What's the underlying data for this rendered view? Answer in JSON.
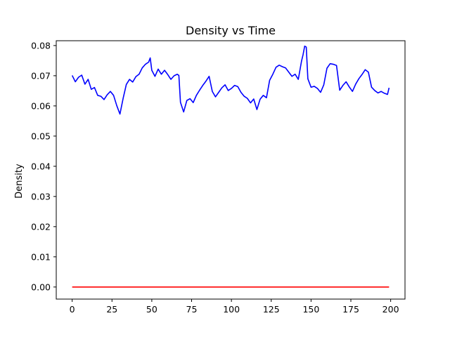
{
  "chart_data": {
    "type": "line",
    "title": "Density vs Time",
    "xlabel": "",
    "ylabel": "Density",
    "xlim": [
      -10,
      209
    ],
    "ylim": [
      -0.004,
      0.0816
    ],
    "x_ticks": [
      0,
      25,
      50,
      75,
      100,
      125,
      150,
      175,
      200
    ],
    "y_ticks": [
      0.0,
      0.01,
      0.02,
      0.03,
      0.04,
      0.05,
      0.06,
      0.07,
      0.08
    ],
    "y_tick_decimals": 2,
    "grid": false,
    "legend": "none",
    "series": [
      {
        "color": "#0000ff",
        "x": [
          0,
          2,
          4,
          6,
          8,
          10,
          12,
          14,
          16,
          18,
          20,
          22,
          24,
          26,
          28,
          30,
          32,
          34,
          36,
          38,
          40,
          42,
          44,
          46,
          48,
          49,
          50,
          52,
          54,
          56,
          58,
          60,
          62,
          64,
          66,
          67,
          68,
          70,
          72,
          74,
          76,
          78,
          80,
          82,
          84,
          86,
          88,
          90,
          92,
          94,
          96,
          98,
          100,
          102,
          104,
          106,
          108,
          110,
          112,
          114,
          116,
          118,
          120,
          122,
          124,
          126,
          128,
          130,
          132,
          134,
          136,
          138,
          140,
          142,
          144,
          145,
          146,
          147,
          148,
          150,
          152,
          154,
          156,
          158,
          160,
          162,
          164,
          166,
          168,
          170,
          172,
          174,
          176,
          178,
          180,
          182,
          184,
          186,
          188,
          190,
          192,
          194,
          196,
          198,
          199
        ],
        "values": [
          0.0701,
          0.068,
          0.0695,
          0.0702,
          0.0672,
          0.0688,
          0.0655,
          0.0661,
          0.0635,
          0.0632,
          0.0621,
          0.0637,
          0.0648,
          0.0635,
          0.0601,
          0.0573,
          0.0625,
          0.0671,
          0.0688,
          0.0679,
          0.0697,
          0.0705,
          0.0726,
          0.0738,
          0.0745,
          0.0759,
          0.0718,
          0.0698,
          0.0722,
          0.0705,
          0.0718,
          0.0704,
          0.0688,
          0.07,
          0.0705,
          0.0701,
          0.0612,
          0.058,
          0.0618,
          0.0624,
          0.0611,
          0.0635,
          0.0652,
          0.0668,
          0.0682,
          0.0698,
          0.0648,
          0.063,
          0.0645,
          0.066,
          0.067,
          0.0651,
          0.0658,
          0.0668,
          0.0664,
          0.0645,
          0.0632,
          0.0625,
          0.061,
          0.0623,
          0.0588,
          0.0622,
          0.0635,
          0.0627,
          0.0685,
          0.0705,
          0.0728,
          0.0735,
          0.073,
          0.0726,
          0.0712,
          0.0698,
          0.0705,
          0.0688,
          0.0748,
          0.077,
          0.0798,
          0.0795,
          0.069,
          0.0662,
          0.0665,
          0.0658,
          0.0645,
          0.067,
          0.0725,
          0.074,
          0.0738,
          0.0734,
          0.0652,
          0.0668,
          0.068,
          0.0663,
          0.0648,
          0.0672,
          0.069,
          0.0704,
          0.072,
          0.0712,
          0.0662,
          0.0651,
          0.0643,
          0.0648,
          0.0642,
          0.0638,
          0.066
        ]
      },
      {
        "color": "#ff0000",
        "x": [
          0,
          199
        ],
        "values": [
          0.0,
          0.0
        ]
      }
    ]
  }
}
